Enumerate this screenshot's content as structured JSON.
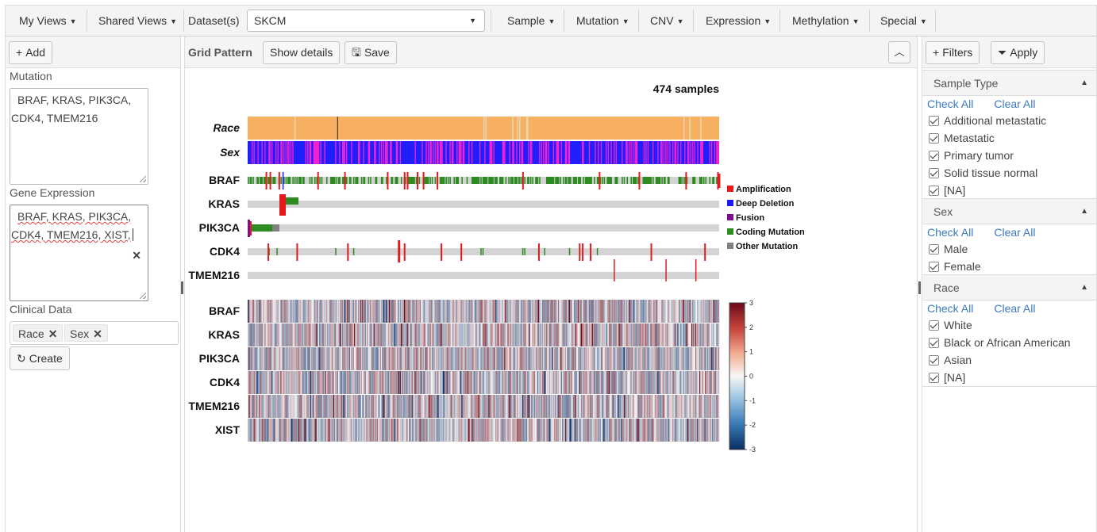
{
  "toolbar": {
    "my_views": "My Views",
    "shared_views": "Shared Views",
    "dataset_label": "Dataset(s)",
    "dataset_value": "SKCM",
    "sample": "Sample",
    "mutation": "Mutation",
    "cnv": "CNV",
    "expression": "Expression",
    "methylation": "Methylation",
    "special": "Special"
  },
  "left": {
    "add_label": "Add",
    "mutation_label": "Mutation",
    "mutation_line1": "BRAF, KRAS, PIK3CA,",
    "mutation_line2": "CDK4, TMEM216",
    "gene_expression_label": "Gene Expression",
    "ge_line1": "BRAF, KRAS, PIK3CA,",
    "ge_line2": "CDK4, TMEM216, XIST,",
    "clinical_label": "Clinical Data",
    "tags": [
      "Race",
      "Sex"
    ],
    "create_label": "Create"
  },
  "center": {
    "title": "Grid Pattern",
    "show_details": "Show details",
    "save": "Save",
    "samples_label": "474 samples",
    "clinical_rows": [
      "Race",
      "Sex"
    ],
    "mutation_rows": [
      "BRAF",
      "KRAS",
      "PIK3CA",
      "CDK4",
      "TMEM216"
    ],
    "expression_rows": [
      "BRAF",
      "KRAS",
      "PIK3CA",
      "CDK4",
      "TMEM216",
      "XIST"
    ],
    "legend": [
      {
        "label": "Amplification",
        "color": "#e41a1c"
      },
      {
        "label": "Deep Deletion",
        "color": "#1a1aff"
      },
      {
        "label": "Fusion",
        "color": "#7a0f8f"
      },
      {
        "label": "Coding Mutation",
        "color": "#2e8b22"
      },
      {
        "label": "Other Mutation",
        "color": "#808080"
      }
    ],
    "colorbar_ticks": [
      "3",
      "2",
      "1",
      "0",
      "-1",
      "-2",
      "-3"
    ],
    "colors": {
      "race_main": "#f7b061",
      "race_alt": "#e8d5b0",
      "sex_blue": "#2020ff",
      "sex_pink": "#ff22cc",
      "track_bg": "#d4d4d4",
      "coding": "#2e8b22",
      "amp": "#e41a1c"
    }
  },
  "right": {
    "filters": "Filters",
    "apply": "Apply",
    "groups": [
      {
        "title": "Sample Type",
        "check_all": "Check All",
        "clear_all": "Clear All",
        "options": [
          "Additional metastatic",
          "Metastatic",
          "Primary tumor",
          "Solid tissue normal",
          "[NA]"
        ]
      },
      {
        "title": "Sex",
        "check_all": "Check All",
        "clear_all": "Clear All",
        "options": [
          "Male",
          "Female"
        ]
      },
      {
        "title": "Race",
        "check_all": "Check All",
        "clear_all": "Clear All",
        "options": [
          "White",
          "Black or African American",
          "Asian",
          "[NA]"
        ]
      }
    ]
  }
}
